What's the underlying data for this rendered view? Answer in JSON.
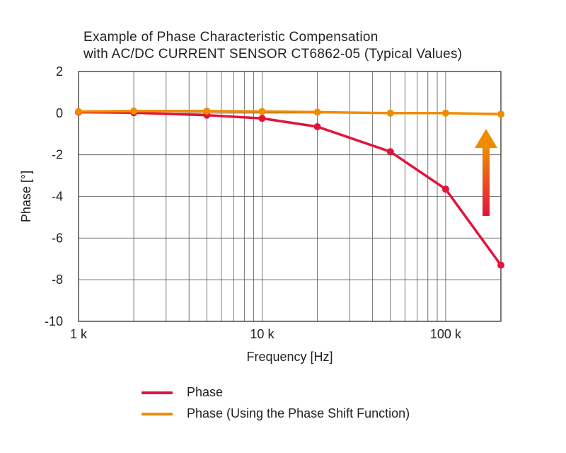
{
  "chart_data": {
    "type": "line",
    "title": [
      "Example of Phase Characteristic Compensation",
      "with AC/DC CURRENT SENSOR CT6862-05 (Typical Values)"
    ],
    "xlabel": "Frequency [Hz]",
    "ylabel": "Phase [°]",
    "x_scale": "log",
    "xlim": [
      1000,
      200000
    ],
    "ylim": [
      -10,
      2
    ],
    "x_ticks": [
      1000,
      10000,
      100000
    ],
    "x_tick_labels": [
      "1 k",
      "10 k",
      "100 k"
    ],
    "y_ticks": [
      2,
      0,
      -2,
      -4,
      -6,
      -8,
      -10
    ],
    "y_tick_labels": [
      "2",
      "0",
      "-2",
      "-4",
      "-6",
      "-8",
      "-10"
    ],
    "grid": true,
    "legend_position": "bottom",
    "series": [
      {
        "name": "Phase",
        "color": "#e4133c",
        "x": [
          1000,
          2000,
          5000,
          10000,
          20000,
          50000,
          100000,
          200000
        ],
        "y": [
          0.05,
          0.02,
          -0.1,
          -0.25,
          -0.65,
          -1.85,
          -3.65,
          -7.3
        ]
      },
      {
        "name": "Phase (Using the Phase Shift Function)",
        "color": "#f08c00",
        "x": [
          1000,
          2000,
          5000,
          10000,
          20000,
          50000,
          100000,
          200000
        ],
        "y": [
          0.08,
          0.1,
          0.1,
          0.08,
          0.05,
          0.0,
          0.0,
          -0.05
        ]
      }
    ],
    "annotation": {
      "type": "up-arrow",
      "gradient": [
        "#e4133c",
        "#f08c00"
      ]
    }
  }
}
